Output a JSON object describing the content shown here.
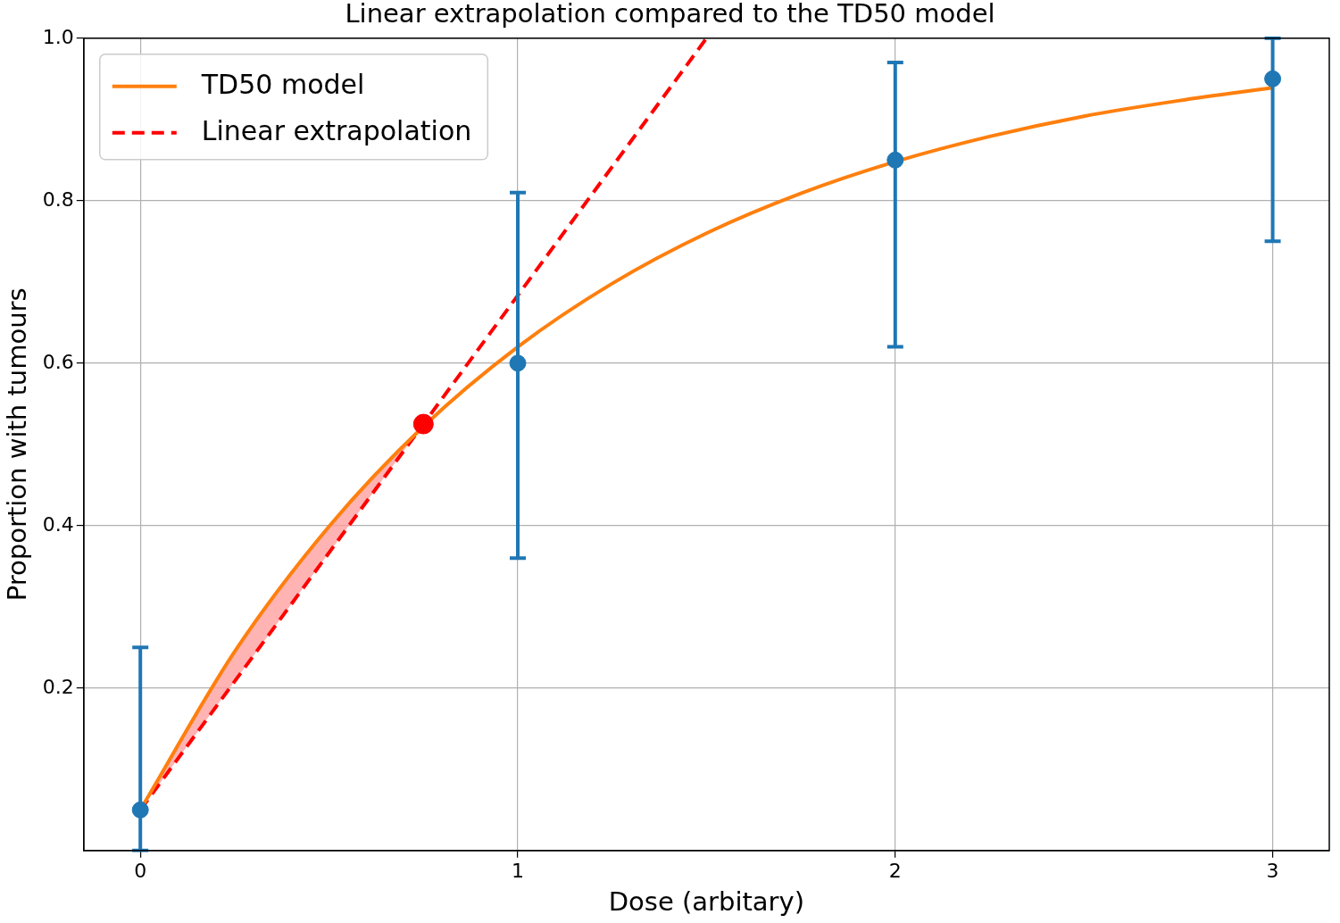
{
  "chart_data": {
    "type": "line",
    "title": "Linear extrapolation compared to the TD50 model",
    "x_label": "Dose (arbitary)",
    "y_label": "Proportion with tumours",
    "xlim": [
      -0.15,
      3.15
    ],
    "xticks": [
      0,
      1,
      2,
      3
    ],
    "ylim": [
      0,
      1
    ],
    "yticks": [
      0.2,
      0.4,
      0.6,
      0.8,
      {
        "value": 1,
        "label": "1.0"
      }
    ],
    "grid": true,
    "legend": "upper left",
    "series": [
      {
        "name": "TD50 model",
        "color": "#ff7f0e",
        "line_style": "solid",
        "x": [
          0,
          0.25,
          0.5,
          0.75,
          1,
          1.25,
          1.5,
          1.75,
          2,
          2.25,
          2.5,
          2.75,
          3
        ],
        "values": [
          0.05,
          0.245,
          0.399,
          0.522,
          0.62,
          0.698,
          0.76,
          0.809,
          0.848,
          0.879,
          0.904,
          0.923,
          0.939
        ]
      },
      {
        "name": "Linear extrapolation",
        "color": "#ff0000",
        "line_style": "dashed",
        "x": [
          0,
          0.75,
          1.5
        ],
        "values": [
          0.05,
          0.525,
          1.0
        ]
      }
    ],
    "observations": {
      "type": "scatter",
      "color": "#1f77b4",
      "marker": "circle",
      "x": [
        0,
        1,
        2,
        3
      ],
      "values": [
        0.05,
        0.6,
        0.85,
        0.95
      ],
      "error_lower": [
        0.0,
        0.36,
        0.62,
        0.75
      ],
      "error_upper": [
        0.25,
        0.81,
        0.97,
        1.0
      ]
    },
    "crossing_point": {
      "x": 0.75,
      "value": 0.525,
      "color": "#ff0000",
      "marker": "circle"
    },
    "shading": {
      "color": "#ff9999",
      "between": [
        "TD50 model",
        "Linear extrapolation"
      ],
      "to_x": 0.75
    }
  }
}
